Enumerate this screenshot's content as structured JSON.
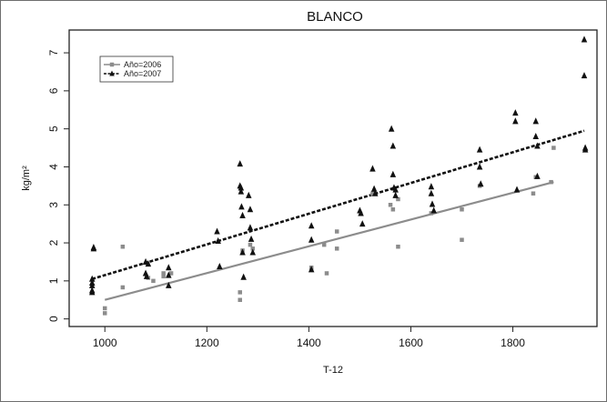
{
  "chart_data": {
    "type": "scatter",
    "title": "BLANCO",
    "xlabel": "T-12",
    "ylabel": "kg/m²",
    "xlim": [
      930,
      1965
    ],
    "ylim": [
      -0.2,
      7.6
    ],
    "xticks": [
      1000,
      1200,
      1400,
      1600,
      1800
    ],
    "yticks": [
      0,
      1,
      2,
      3,
      4,
      5,
      6,
      7
    ],
    "legend_position": "top-left",
    "grid": false,
    "series": [
      {
        "name": "Año=2006",
        "marker": "square",
        "color": "#8c8c8c",
        "line_style": "solid",
        "fit": {
          "x": [
            1000,
            1880
          ],
          "y": [
            0.5,
            3.6
          ]
        },
        "x": [
          1000,
          1000,
          1035,
          1035,
          1085,
          1095,
          1115,
          1115,
          1130,
          1265,
          1265,
          1270,
          1285,
          1290,
          1405,
          1405,
          1430,
          1435,
          1455,
          1455,
          1525,
          1560,
          1565,
          1575,
          1575,
          1640,
          1700,
          1700,
          1735,
          1840,
          1845,
          1875,
          1880
        ],
        "y": [
          0.28,
          0.15,
          1.9,
          0.83,
          1.08,
          1.0,
          1.2,
          1.12,
          1.2,
          0.7,
          0.5,
          1.8,
          1.95,
          1.85,
          1.35,
          1.3,
          1.95,
          1.2,
          2.3,
          1.85,
          3.3,
          3.0,
          2.88,
          3.15,
          1.9,
          2.78,
          2.88,
          2.08,
          3.5,
          3.3,
          3.73,
          3.6,
          4.5
        ]
      },
      {
        "name": "Año=2007",
        "marker": "triangle",
        "color": "#111111",
        "line_style": "dashed",
        "fit": {
          "x": [
            975,
            1940
          ],
          "y": [
            1.05,
            4.95
          ]
        },
        "x": [
          975,
          975,
          975,
          975,
          975,
          978,
          978,
          1080,
          1080,
          1082,
          1085,
          1125,
          1125,
          1125,
          1220,
          1222,
          1225,
          1265,
          1265,
          1267,
          1267,
          1268,
          1270,
          1270,
          1272,
          1282,
          1285,
          1285,
          1287,
          1290,
          1405,
          1405,
          1405,
          1500,
          1502,
          1505,
          1525,
          1528,
          1530,
          1562,
          1565,
          1565,
          1567,
          1570,
          1570,
          1640,
          1640,
          1642,
          1645,
          1735,
          1735,
          1737,
          1805,
          1805,
          1808,
          1845,
          1845,
          1848,
          1848,
          1940,
          1940,
          1942,
          1942
        ],
        "y": [
          1.05,
          0.95,
          0.88,
          0.75,
          0.7,
          1.88,
          1.85,
          1.5,
          1.2,
          1.12,
          1.45,
          1.35,
          1.15,
          0.88,
          2.3,
          2.05,
          1.38,
          4.08,
          3.5,
          3.45,
          3.35,
          2.95,
          2.72,
          1.75,
          1.1,
          3.25,
          2.88,
          2.4,
          2.1,
          1.75,
          2.45,
          2.08,
          1.3,
          2.85,
          2.78,
          2.5,
          3.95,
          3.42,
          3.3,
          5.0,
          4.55,
          3.8,
          3.45,
          3.4,
          3.25,
          3.48,
          3.3,
          3.02,
          2.85,
          4.45,
          4.0,
          3.55,
          5.42,
          5.2,
          3.4,
          5.2,
          4.8,
          4.55,
          3.75,
          7.35,
          6.4,
          4.5,
          4.45
        ]
      }
    ]
  }
}
